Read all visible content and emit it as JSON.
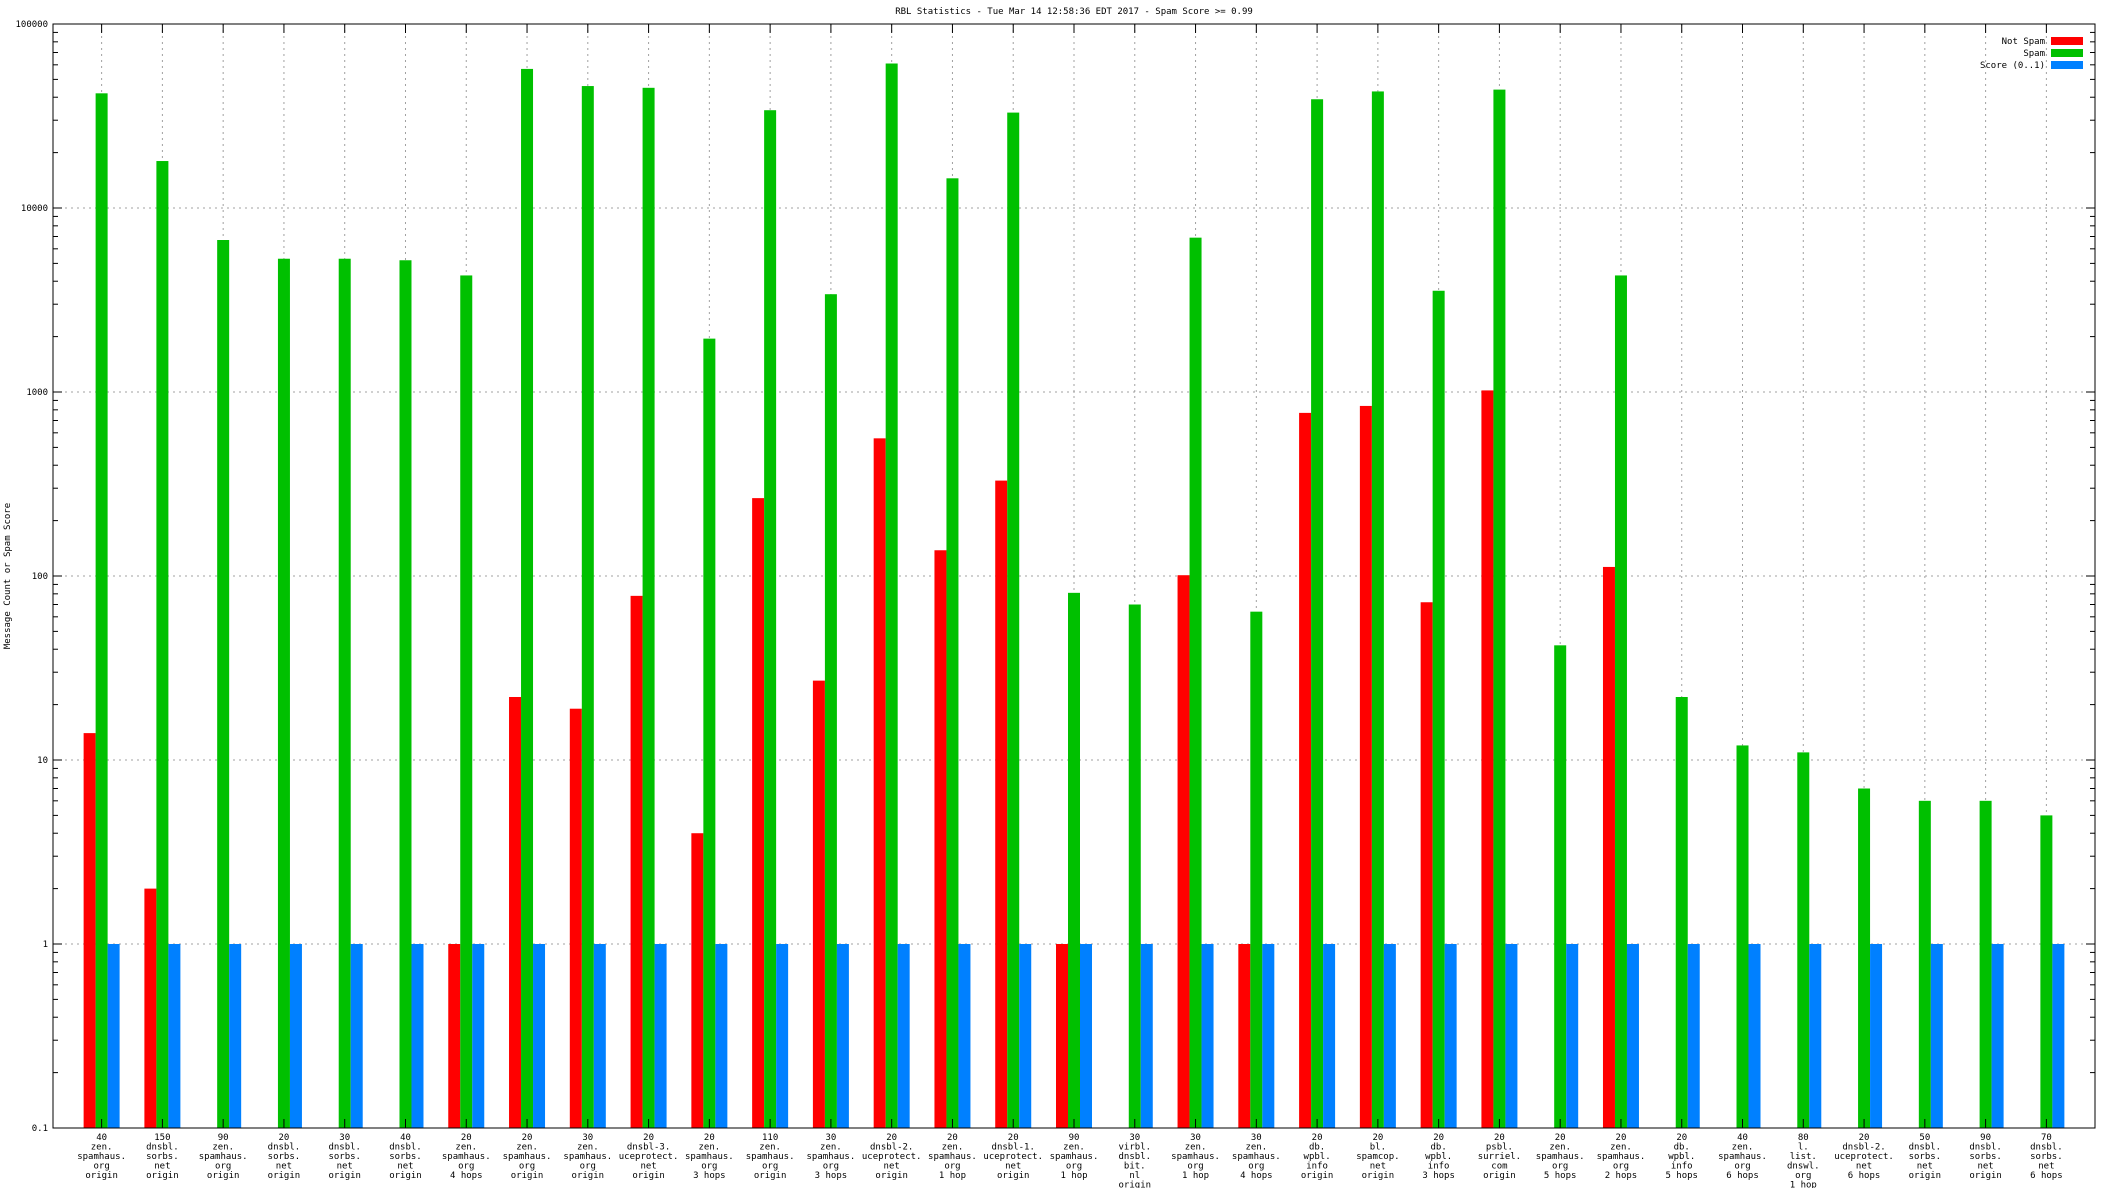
{
  "chart_data": {
    "type": "bar",
    "title": "RBL Statistics - Tue Mar 14 12:58:36 EDT 2017 - Spam Score >= 0.99",
    "ylabel": "Message Count or Spam Score",
    "xlabel": "",
    "yscale": "log",
    "ylim": [
      0.1,
      100000
    ],
    "yticks": [
      "0.1",
      "1",
      "10",
      "100",
      "1000",
      "10000",
      "100000"
    ],
    "grid": true,
    "legend_position": "top-right",
    "categories": [
      [
        "40",
        "zen.",
        "spamhaus.",
        "org",
        "origin"
      ],
      [
        "150",
        "dnsbl.",
        "sorbs.",
        "net",
        "origin"
      ],
      [
        "90",
        "zen.",
        "spamhaus.",
        "org",
        "origin"
      ],
      [
        "20",
        "dnsbl.",
        "sorbs.",
        "net",
        "origin"
      ],
      [
        "30",
        "dnsbl.",
        "sorbs.",
        "net",
        "origin"
      ],
      [
        "40",
        "dnsbl.",
        "sorbs.",
        "net",
        "origin"
      ],
      [
        "20",
        "zen.",
        "spamhaus.",
        "org",
        "4 hops"
      ],
      [
        "20",
        "zen.",
        "spamhaus.",
        "org",
        "origin"
      ],
      [
        "30",
        "zen.",
        "spamhaus.",
        "org",
        "origin"
      ],
      [
        "20",
        "dnsbl-3.",
        "uceprotect.",
        "net",
        "origin"
      ],
      [
        "20",
        "zen.",
        "spamhaus.",
        "org",
        "3 hops"
      ],
      [
        "110",
        "zen.",
        "spamhaus.",
        "org",
        "origin"
      ],
      [
        "30",
        "zen.",
        "spamhaus.",
        "org",
        "3 hops"
      ],
      [
        "20",
        "dnsbl-2.",
        "uceprotect.",
        "net",
        "origin"
      ],
      [
        "20",
        "zen.",
        "spamhaus.",
        "org",
        "1 hop"
      ],
      [
        "20",
        "dnsbl-1.",
        "uceprotect.",
        "net",
        "origin"
      ],
      [
        "90",
        "zen.",
        "spamhaus.",
        "org",
        "1 hop"
      ],
      [
        "30",
        "virbl.",
        "dnsbl.",
        "bit.",
        "nl",
        "origin"
      ],
      [
        "30",
        "zen.",
        "spamhaus.",
        "org",
        "1 hop"
      ],
      [
        "30",
        "zen.",
        "spamhaus.",
        "org",
        "4 hops"
      ],
      [
        "20",
        "db.",
        "wpbl.",
        "info",
        "origin"
      ],
      [
        "20",
        "bl.",
        "spamcop.",
        "net",
        "origin"
      ],
      [
        "20",
        "db.",
        "wpbl.",
        "info",
        "3 hops"
      ],
      [
        "20",
        "psbl.",
        "surriel.",
        "com",
        "origin"
      ],
      [
        "20",
        "zen.",
        "spamhaus.",
        "org",
        "5 hops"
      ],
      [
        "20",
        "zen.",
        "spamhaus.",
        "org",
        "2 hops"
      ],
      [
        "20",
        "db.",
        "wpbl.",
        "info",
        "5 hops"
      ],
      [
        "40",
        "zen.",
        "spamhaus.",
        "org",
        "6 hops"
      ],
      [
        "80",
        "l.",
        "list.",
        "dnswl.",
        "org",
        "1 hop"
      ],
      [
        "20",
        "dnsbl-2.",
        "uceprotect.",
        "net",
        "6 hops"
      ],
      [
        "50",
        "dnsbl.",
        "sorbs.",
        "net",
        "origin"
      ],
      [
        "90",
        "dnsbl.",
        "sorbs.",
        "net",
        "origin"
      ],
      [
        "70",
        "dnsbl.",
        "sorbs.",
        "net",
        "6 hops"
      ]
    ],
    "series": [
      {
        "name": "Not Spam",
        "color": "#ff0000",
        "values": [
          14,
          2,
          null,
          null,
          null,
          null,
          1,
          22,
          19,
          78,
          4,
          265,
          27,
          560,
          138,
          330,
          1,
          null,
          101,
          1,
          770,
          840,
          72,
          1020,
          null,
          112,
          null,
          null,
          null,
          null,
          null,
          null,
          null
        ]
      },
      {
        "name": "Spam",
        "color": "#00c000",
        "values": [
          42000,
          18000,
          6700,
          5300,
          5300,
          5200,
          4300,
          57000,
          46000,
          45000,
          1950,
          34000,
          3400,
          61000,
          14500,
          33000,
          81,
          70,
          6900,
          64,
          39000,
          43000,
          3550,
          44000,
          42,
          4300,
          22,
          12,
          11,
          7,
          6,
          6,
          5
        ]
      },
      {
        "name": "Score (0..1)",
        "color": "#0080ff",
        "values": [
          1,
          1,
          1,
          1,
          1,
          1,
          1,
          1,
          1,
          1,
          1,
          1,
          1,
          1,
          1,
          1,
          1,
          1,
          1,
          1,
          1,
          1,
          1,
          1,
          1,
          1,
          1,
          1,
          1,
          1,
          1,
          1,
          1
        ]
      }
    ]
  }
}
